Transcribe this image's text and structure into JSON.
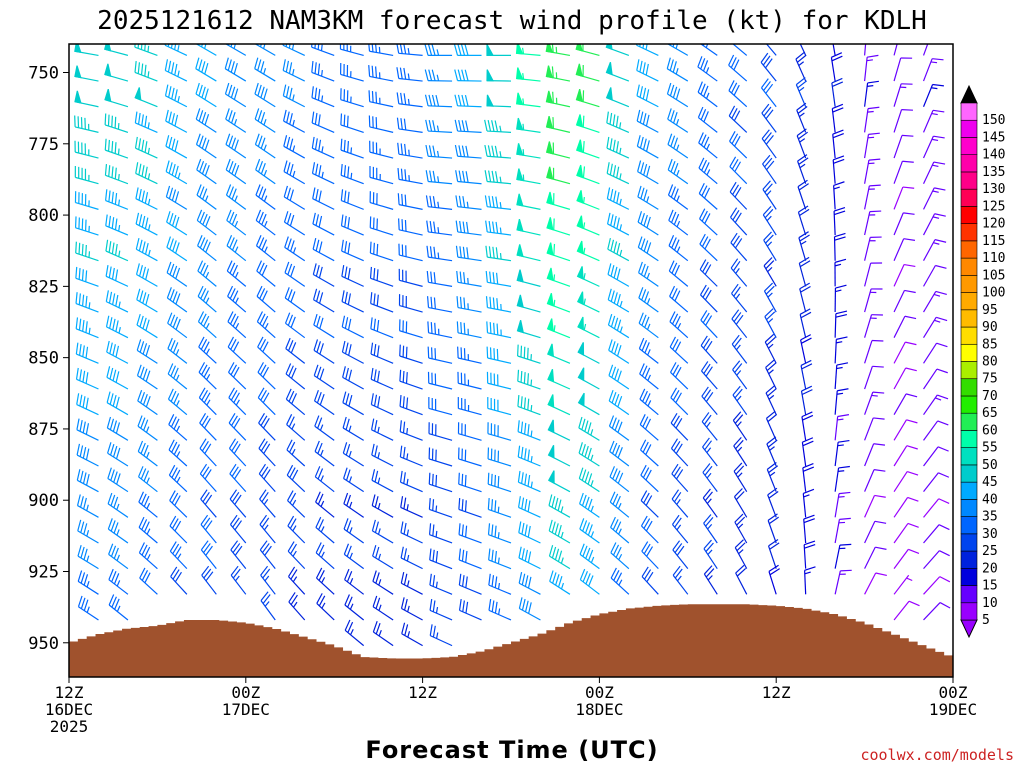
{
  "chart_data": {
    "type": "wind_barb_time_height",
    "title": "2025121612 NAM3KM forecast wind profile (kt) for KDLH",
    "xlabel": "Forecast Time (UTC)",
    "credit": "coolwx.com/models",
    "x_hours_range": [
      0,
      60
    ],
    "y_pressure_range_hpa": [
      740,
      962
    ],
    "x_ticks": [
      {
        "hour": 0,
        "lines": [
          "12Z",
          "16DEC",
          "2025"
        ]
      },
      {
        "hour": 12,
        "lines": [
          "00Z",
          "17DEC"
        ]
      },
      {
        "hour": 24,
        "lines": [
          "12Z"
        ]
      },
      {
        "hour": 36,
        "lines": [
          "00Z",
          "18DEC"
        ]
      },
      {
        "hour": 48,
        "lines": [
          "12Z"
        ]
      },
      {
        "hour": 60,
        "lines": [
          "00Z",
          "19DEC"
        ]
      }
    ],
    "y_ticks": [
      750,
      775,
      800,
      825,
      850,
      875,
      900,
      925,
      950
    ],
    "colorbar": {
      "label_values": [
        5,
        10,
        15,
        20,
        25,
        30,
        35,
        40,
        45,
        50,
        55,
        60,
        65,
        70,
        75,
        80,
        85,
        90,
        95,
        100,
        105,
        110,
        115,
        120,
        125,
        130,
        135,
        140,
        145,
        150
      ],
      "colors": [
        "#9900ff",
        "#6600ff",
        "#0000dd",
        "#0022dd",
        "#0044ee",
        "#0066ff",
        "#0088ff",
        "#00aaff",
        "#00cccc",
        "#00e0c0",
        "#00ffaa",
        "#22ee55",
        "#22ee00",
        "#33dd00",
        "#aaee00",
        "#ffff00",
        "#ffdd00",
        "#ffbb00",
        "#ffaa00",
        "#ff9900",
        "#ff8800",
        "#ff6600",
        "#ff3300",
        "#ff0000",
        "#ff0055",
        "#ff0088",
        "#ff00aa",
        "#ff00cc",
        "#ee00ee",
        "#ff66ff"
      ]
    },
    "surface_pressure_hpa": [
      [
        0,
        950
      ],
      [
        2,
        947
      ],
      [
        4,
        945
      ],
      [
        6,
        944
      ],
      [
        8,
        942
      ],
      [
        10,
        942
      ],
      [
        12,
        943
      ],
      [
        14,
        945
      ],
      [
        16,
        948
      ],
      [
        18,
        951
      ],
      [
        20,
        955
      ],
      [
        22,
        955.5
      ],
      [
        24,
        955.5
      ],
      [
        26,
        955
      ],
      [
        28,
        953
      ],
      [
        30,
        950
      ],
      [
        32,
        947
      ],
      [
        34,
        943
      ],
      [
        36,
        940
      ],
      [
        38,
        938
      ],
      [
        40,
        937
      ],
      [
        42,
        936.5
      ],
      [
        44,
        936.5
      ],
      [
        46,
        936.5
      ],
      [
        48,
        937
      ],
      [
        50,
        938
      ],
      [
        52,
        940
      ],
      [
        54,
        943
      ],
      [
        56,
        947
      ],
      [
        58,
        951
      ],
      [
        60,
        955
      ]
    ],
    "wind_field_kt": {
      "pressure_levels_hpa": [
        744,
        753,
        762,
        771,
        780,
        789,
        798,
        807,
        816,
        825,
        834,
        843,
        852,
        861,
        870,
        879,
        888,
        897,
        906,
        915,
        924,
        933,
        942,
        951
      ],
      "time_hours": [
        0,
        2,
        4,
        6,
        8,
        10,
        12,
        14,
        16,
        18,
        20,
        22,
        24,
        26,
        28,
        30,
        32,
        34,
        36,
        38,
        40,
        42,
        44,
        46,
        48,
        50,
        52,
        54,
        56,
        58,
        60
      ],
      "speed_at_time_kt": [
        50,
        50,
        50,
        48,
        45,
        42,
        40,
        38,
        36,
        35,
        35,
        35,
        35,
        38,
        42,
        50,
        58,
        65,
        62,
        50,
        42,
        38,
        35,
        32,
        30,
        25,
        20,
        15,
        12,
        15,
        25
      ],
      "direction_at_time_deg": [
        280,
        280,
        285,
        290,
        295,
        300,
        300,
        300,
        295,
        290,
        285,
        280,
        275,
        270,
        270,
        270,
        275,
        280,
        285,
        290,
        295,
        300,
        305,
        310,
        320,
        335,
        350,
        5,
        15,
        20,
        20
      ]
    }
  }
}
